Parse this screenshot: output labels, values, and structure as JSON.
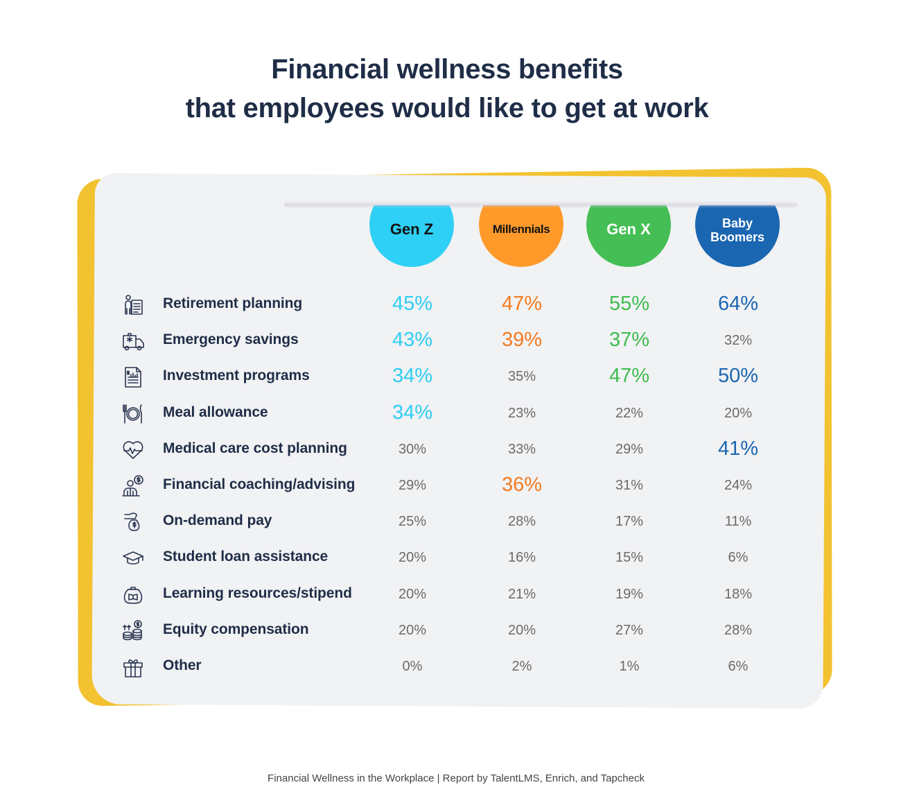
{
  "title": {
    "line1": "Financial wellness benefits",
    "line2": "that employees would like to get at work"
  },
  "columns": [
    {
      "label": "Gen Z",
      "color": "#2fd0f5"
    },
    {
      "label": "Millennials",
      "color": "#ff9a2a"
    },
    {
      "label": "Gen X",
      "color": "#45bf55"
    },
    {
      "label_line1": "Baby",
      "label_line2": "Boomers",
      "label": "Baby Boomers",
      "color": "#1b66b1"
    }
  ],
  "rows": [
    {
      "label": "Retirement planning",
      "icon": "retirement-planning-icon",
      "values": [
        "45%",
        "47%",
        "55%",
        "64%"
      ],
      "highlight": [
        true,
        true,
        true,
        true
      ]
    },
    {
      "label": "Emergency savings",
      "icon": "ambulance-icon",
      "values": [
        "43%",
        "39%",
        "37%",
        "32%"
      ],
      "highlight": [
        true,
        true,
        true,
        false
      ]
    },
    {
      "label": "Investment programs",
      "icon": "investment-document-icon",
      "values": [
        "34%",
        "35%",
        "47%",
        "50%"
      ],
      "highlight": [
        true,
        false,
        true,
        true
      ]
    },
    {
      "label": "Meal allowance",
      "icon": "plate-cutlery-icon",
      "values": [
        "34%",
        "23%",
        "22%",
        "20%"
      ],
      "highlight": [
        true,
        false,
        false,
        false
      ]
    },
    {
      "label": "Medical care cost planning",
      "icon": "heart-pulse-icon",
      "values": [
        "30%",
        "33%",
        "29%",
        "41%"
      ],
      "highlight": [
        false,
        false,
        false,
        true
      ]
    },
    {
      "label": "Financial coaching/advising",
      "icon": "financial-advisor-icon",
      "values": [
        "29%",
        "36%",
        "31%",
        "24%"
      ],
      "highlight": [
        false,
        true,
        false,
        false
      ]
    },
    {
      "label": "On-demand pay",
      "icon": "hand-money-bag-icon",
      "values": [
        "25%",
        "28%",
        "17%",
        "11%"
      ],
      "highlight": [
        false,
        false,
        false,
        false
      ]
    },
    {
      "label": "Student loan assistance",
      "icon": "graduation-cap-icon",
      "values": [
        "20%",
        "16%",
        "15%",
        "6%"
      ],
      "highlight": [
        false,
        false,
        false,
        false
      ]
    },
    {
      "label": "Learning resources/stipend",
      "icon": "book-purse-icon",
      "values": [
        "20%",
        "21%",
        "19%",
        "18%"
      ],
      "highlight": [
        false,
        false,
        false,
        false
      ]
    },
    {
      "label": "Equity compensation",
      "icon": "coin-stack-icon",
      "values": [
        "20%",
        "20%",
        "27%",
        "28%"
      ],
      "highlight": [
        false,
        false,
        false,
        false
      ]
    },
    {
      "label": "Other",
      "icon": "gift-icon",
      "values": [
        "0%",
        "2%",
        "1%",
        "6%"
      ],
      "highlight": [
        false,
        false,
        false,
        false
      ]
    }
  ],
  "footer": "Financial Wellness in the Workplace | Report by TalentLMS, Enrich, and Tapcheck",
  "colors": {
    "title": "#1f2d47",
    "accent_yellow": "#f2c230",
    "card_bg": "#f1f2f4",
    "value_gray": "#6a6a6a"
  },
  "chart_data": {
    "type": "table",
    "title": "Financial wellness benefits that employees would like to get at work",
    "categories": [
      "Retirement planning",
      "Emergency savings",
      "Investment programs",
      "Meal allowance",
      "Medical care cost planning",
      "Financial coaching/advising",
      "On-demand pay",
      "Student loan assistance",
      "Learning resources/stipend",
      "Equity compensation",
      "Other"
    ],
    "series": [
      {
        "name": "Gen Z",
        "values": [
          45,
          43,
          34,
          34,
          30,
          29,
          25,
          20,
          20,
          20,
          0
        ]
      },
      {
        "name": "Millennials",
        "values": [
          47,
          39,
          35,
          23,
          33,
          36,
          28,
          16,
          21,
          20,
          2
        ]
      },
      {
        "name": "Gen X",
        "values": [
          55,
          37,
          47,
          22,
          29,
          31,
          17,
          15,
          19,
          27,
          1
        ]
      },
      {
        "name": "Baby Boomers",
        "values": [
          64,
          32,
          50,
          20,
          41,
          24,
          11,
          6,
          18,
          28,
          6
        ]
      }
    ],
    "unit": "%",
    "source": "Financial Wellness in the Workplace | Report by TalentLMS, Enrich, and Tapcheck"
  }
}
